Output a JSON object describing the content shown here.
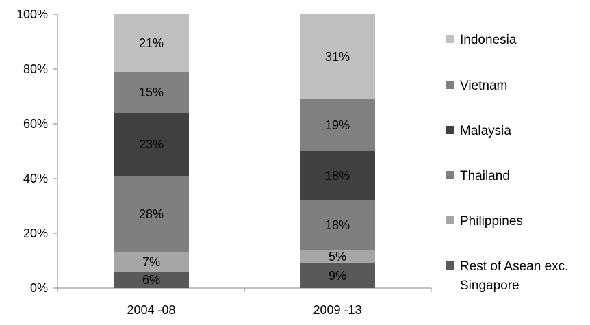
{
  "chart_data": {
    "type": "bar",
    "stacked": true,
    "categories": [
      "2004 -08",
      "2009 -13"
    ],
    "series": [
      {
        "name": "Rest of Asean exc. Singapore",
        "values": [
          6,
          9
        ],
        "labels": [
          "6%",
          "9%"
        ],
        "color": "#595959"
      },
      {
        "name": "Philippines",
        "values": [
          7,
          5
        ],
        "labels": [
          "7%",
          "5%"
        ],
        "color": "#a6a6a6"
      },
      {
        "name": "Thailand",
        "values": [
          28,
          18
        ],
        "labels": [
          "28%",
          "18%"
        ],
        "color": "#7f7f7f"
      },
      {
        "name": "Malaysia",
        "values": [
          23,
          18
        ],
        "labels": [
          "23%",
          "18%"
        ],
        "color": "#404040"
      },
      {
        "name": "Vietnam",
        "values": [
          15,
          19
        ],
        "labels": [
          "15%",
          "19%"
        ],
        "color": "#808080"
      },
      {
        "name": "Indonesia",
        "values": [
          21,
          31
        ],
        "labels": [
          "21%",
          "31%"
        ],
        "color": "#bfbfbf"
      }
    ],
    "legend_order": [
      "Indonesia",
      "Vietnam",
      "Malaysia",
      "Thailand",
      "Philippines",
      "Rest of Asean exc. Singapore"
    ],
    "legend_lines": [
      [
        "Indonesia"
      ],
      [
        "Vietnam"
      ],
      [
        "Malaysia"
      ],
      [
        "Thailand"
      ],
      [
        "Philippines"
      ],
      [
        "Rest of Asean exc.",
        "Singapore"
      ]
    ],
    "y_ticks": [
      "0%",
      "20%",
      "40%",
      "60%",
      "80%",
      "100%"
    ],
    "ylim": [
      0,
      100
    ],
    "grid": false,
    "legend_position": "right",
    "axis_color": "#868686"
  }
}
